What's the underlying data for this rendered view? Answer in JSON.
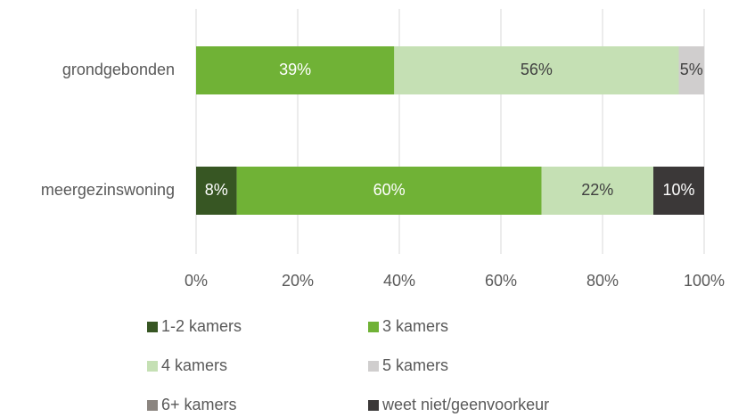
{
  "chart_data": {
    "type": "stacked-bar-horizontal",
    "categories": [
      "grondgebonden",
      "meergezinswoning"
    ],
    "series": [
      {
        "name": "1-2 kamers",
        "color": "#375623",
        "values": [
          0,
          8
        ],
        "value_labels": [
          null,
          "8%"
        ]
      },
      {
        "name": "3 kamers",
        "color": "#70b236",
        "values": [
          39,
          60
        ],
        "value_labels": [
          "39%",
          "60%"
        ]
      },
      {
        "name": "4 kamers",
        "color": "#c5e0b4",
        "values": [
          56,
          22
        ],
        "value_labels": [
          "56%",
          "22%"
        ]
      },
      {
        "name": "5 kamers",
        "color": "#d0cece",
        "values": [
          5,
          0
        ],
        "value_labels": [
          "5%",
          null
        ]
      },
      {
        "name": "6+ kamers",
        "color": "#8b8580",
        "values": [
          0,
          0
        ],
        "value_labels": [
          null,
          null
        ]
      },
      {
        "name": "weet niet/geenvoorkeur",
        "color": "#3b3838",
        "values": [
          0,
          10
        ],
        "value_labels": [
          null,
          "10%"
        ]
      }
    ],
    "xlim": [
      0,
      100
    ],
    "xticks": [
      {
        "value": 0,
        "label": "0%"
      },
      {
        "value": 20,
        "label": "20%"
      },
      {
        "value": 40,
        "label": "40%"
      },
      {
        "value": 60,
        "label": "60%"
      },
      {
        "value": 80,
        "label": "80%"
      },
      {
        "value": 100,
        "label": "100%"
      }
    ],
    "grid": true,
    "legend": "bottom"
  }
}
